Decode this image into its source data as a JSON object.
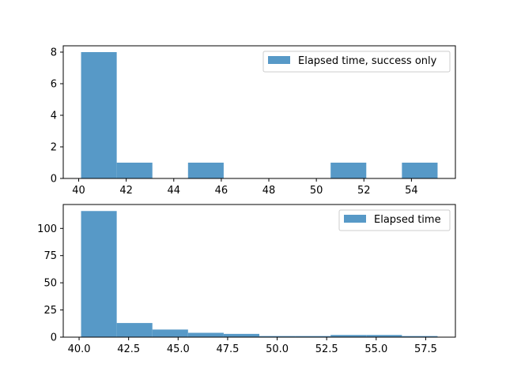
{
  "chart_data": [
    {
      "type": "bar",
      "title": "",
      "xlabel": "",
      "ylabel": "",
      "xlim": [
        39.35,
        55.85
      ],
      "ylim": [
        0,
        8.4
      ],
      "xticks": [
        40,
        42,
        44,
        46,
        48,
        50,
        52,
        54
      ],
      "xtick_labels": [
        "40",
        "42",
        "44",
        "46",
        "48",
        "50",
        "52",
        "54"
      ],
      "yticks": [
        0,
        2,
        4,
        6,
        8
      ],
      "ytick_labels": [
        "0",
        "2",
        "4",
        "6",
        "8"
      ],
      "bin_edges": [
        40.1,
        41.6,
        43.1,
        44.6,
        46.1,
        47.6,
        49.1,
        50.6,
        52.1,
        53.6,
        55.1
      ],
      "counts": [
        8,
        1,
        0,
        1,
        0,
        0,
        0,
        1,
        0,
        1
      ],
      "series_name": "Elapsed time, success only",
      "color": "#5799c7",
      "legend": "upper right",
      "grid": false
    },
    {
      "type": "bar",
      "title": "",
      "xlabel": "",
      "ylabel": "",
      "xlim": [
        39.2,
        59.0
      ],
      "ylim": [
        0,
        122
      ],
      "xticks": [
        40.0,
        42.5,
        45.0,
        47.5,
        50.0,
        52.5,
        55.0,
        57.5
      ],
      "xtick_labels": [
        "40.0",
        "42.5",
        "45.0",
        "47.5",
        "50.0",
        "52.5",
        "55.0",
        "57.5"
      ],
      "yticks": [
        0,
        25,
        50,
        75,
        100
      ],
      "ytick_labels": [
        "0",
        "25",
        "50",
        "75",
        "100"
      ],
      "bin_edges": [
        40.1,
        41.9,
        43.7,
        45.5,
        47.3,
        49.1,
        50.9,
        52.7,
        54.5,
        56.3,
        58.1
      ],
      "counts": [
        116,
        13,
        7,
        4,
        3,
        1,
        1,
        2,
        2,
        1
      ],
      "series_name": "Elapsed time",
      "color": "#5799c7",
      "legend": "upper right",
      "grid": false
    }
  ]
}
